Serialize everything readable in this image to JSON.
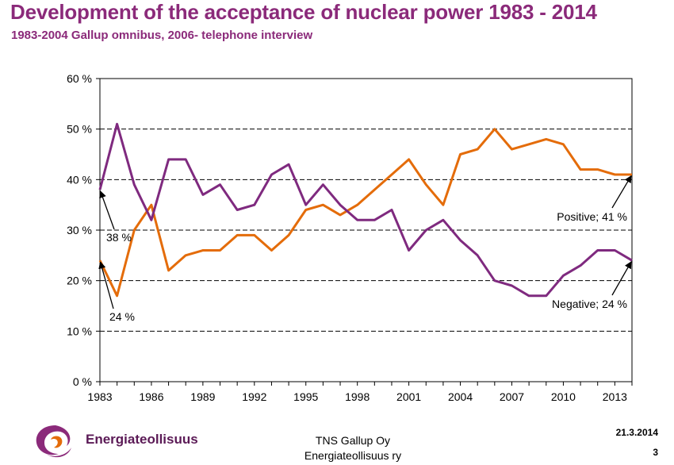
{
  "title": "Development of the acceptance of nuclear power 1983 - 2014",
  "subtitle": "1983-2004 Gallup omnibus, 2006- telephone interview",
  "chart_data": {
    "type": "line",
    "x": [
      1983,
      1984,
      1985,
      1986,
      1987,
      1988,
      1989,
      1990,
      1991,
      1992,
      1993,
      1994,
      1995,
      1996,
      1997,
      1998,
      1999,
      2000,
      2001,
      2002,
      2003,
      2004,
      2005,
      2006,
      2007,
      2008,
      2009,
      2010,
      2011,
      2012,
      2013,
      2014
    ],
    "series": [
      {
        "name": "Positive",
        "color": "#E46C0A",
        "values": [
          24,
          17,
          30,
          35,
          22,
          25,
          26,
          26,
          29,
          29,
          26,
          29,
          34,
          35,
          33,
          35,
          38,
          41,
          44,
          39,
          35,
          45,
          46,
          50,
          46,
          47,
          48,
          47,
          42,
          42,
          41,
          41
        ]
      },
      {
        "name": "Negative",
        "color": "#7F2A7F",
        "values": [
          38,
          51,
          39,
          32,
          44,
          44,
          37,
          39,
          34,
          35,
          41,
          43,
          35,
          39,
          35,
          32,
          32,
          34,
          26,
          30,
          32,
          28,
          25,
          20,
          19,
          17,
          17,
          21,
          23,
          26,
          26,
          24
        ]
      }
    ],
    "xticks": [
      "1983",
      "1986",
      "1989",
      "1992",
      "1995",
      "1998",
      "2001",
      "2004",
      "2007",
      "2010",
      "2013"
    ],
    "yticks": [
      "0 %",
      "10 %",
      "20 %",
      "30 %",
      "40 %",
      "50 %",
      "60 %"
    ],
    "ylim": [
      0,
      60
    ],
    "xlim": [
      1983,
      2014
    ],
    "grid": "horizontal dashed",
    "annotations": [
      {
        "text": "38 %",
        "x": 1983,
        "y": 38
      },
      {
        "text": "24 %",
        "x": 1983,
        "y": 24
      },
      {
        "text": "Positive; 41 %",
        "x": 2014,
        "y": 41
      },
      {
        "text": "Negative; 24 %",
        "x": 2014,
        "y": 24
      }
    ]
  },
  "footer": {
    "logo_text": "Energiateollisuus",
    "source_line1": "TNS Gallup Oy",
    "source_line2": "Energiateollisuus ry",
    "date": "21.3.2014",
    "page": "3"
  }
}
